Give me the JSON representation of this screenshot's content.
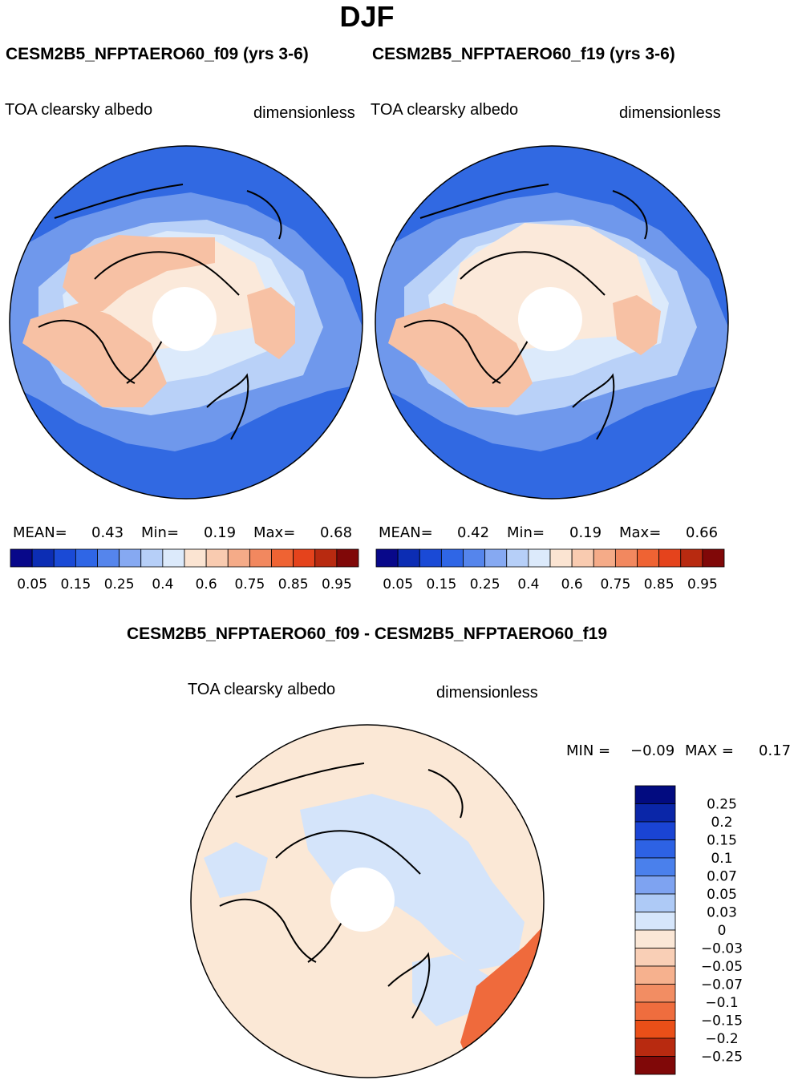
{
  "figure": {
    "season": "DJF",
    "case1_title": "CESM2B5_NFPTAERO60_f09 (yrs 3-6)",
    "case2_title": "CESM2B5_NFPTAERO60_f19 (yrs 3-6)",
    "diff_title": "CESM2B5_NFPTAERO60_f09 - CESM2B5_NFPTAERO60_f19"
  },
  "panels": [
    {
      "variable": "TOA clearsky albedo",
      "units": "dimensionless",
      "mean_label": "MEAN=",
      "mean": "0.43",
      "min_label": "Min=",
      "min": "0.19",
      "max_label": "Max=",
      "max": "0.68"
    },
    {
      "variable": "TOA clearsky albedo",
      "units": "dimensionless",
      "mean_label": "MEAN=",
      "mean": "0.42",
      "min_label": "Min=",
      "min": "0.19",
      "max_label": "Max=",
      "max": "0.66"
    },
    {
      "variable": "TOA clearsky albedo",
      "units": "dimensionless",
      "min_label": "MIN =",
      "min": "−0.09",
      "max_label": "MAX =",
      "max": "0.17"
    }
  ],
  "colorbars": {
    "abs": {
      "colors": [
        "#08088a",
        "#0c2db4",
        "#1a4ad6",
        "#2f66e6",
        "#5585ec",
        "#86a9f2",
        "#b6cff8",
        "#dceafb",
        "#fbe4d2",
        "#f9cbb0",
        "#f5ab88",
        "#f2885f",
        "#ef6333",
        "#e5431c",
        "#b82a10",
        "#800808"
      ],
      "labels": [
        "0.05",
        "0.15",
        "0.25",
        "0.4",
        "0.6",
        "0.75",
        "0.85",
        "0.95"
      ]
    },
    "diff": {
      "colors": [
        "#020b80",
        "#0a26a8",
        "#1a44d4",
        "#2d62e4",
        "#4a80ec",
        "#7ea3f1",
        "#aecaf6",
        "#d6e6fb",
        "#fbe7d6",
        "#f9cfb6",
        "#f6b18e",
        "#f28d63",
        "#ef6d3e",
        "#ea4f18",
        "#b82a10",
        "#800808"
      ],
      "labels": [
        "0.25",
        "0.2",
        "0.15",
        "0.1",
        "0.07",
        "0.05",
        "0.03",
        "0",
        "−0.03",
        "−0.05",
        "−0.07",
        "−0.1",
        "−0.15",
        "−0.2",
        "−0.25"
      ]
    }
  },
  "map_colors": {
    "deep_blue": "#3169e2",
    "mid_blue": "#6f98ec",
    "light_blue": "#b9d1f8",
    "pale_blue": "#dceafb",
    "pale_cream": "#fbe9da",
    "land_orange": "#f7c1a4",
    "diff_cream": "#fbe8d6",
    "diff_blue": "#d4e4fa",
    "diff_red": "#ef6a3c"
  }
}
